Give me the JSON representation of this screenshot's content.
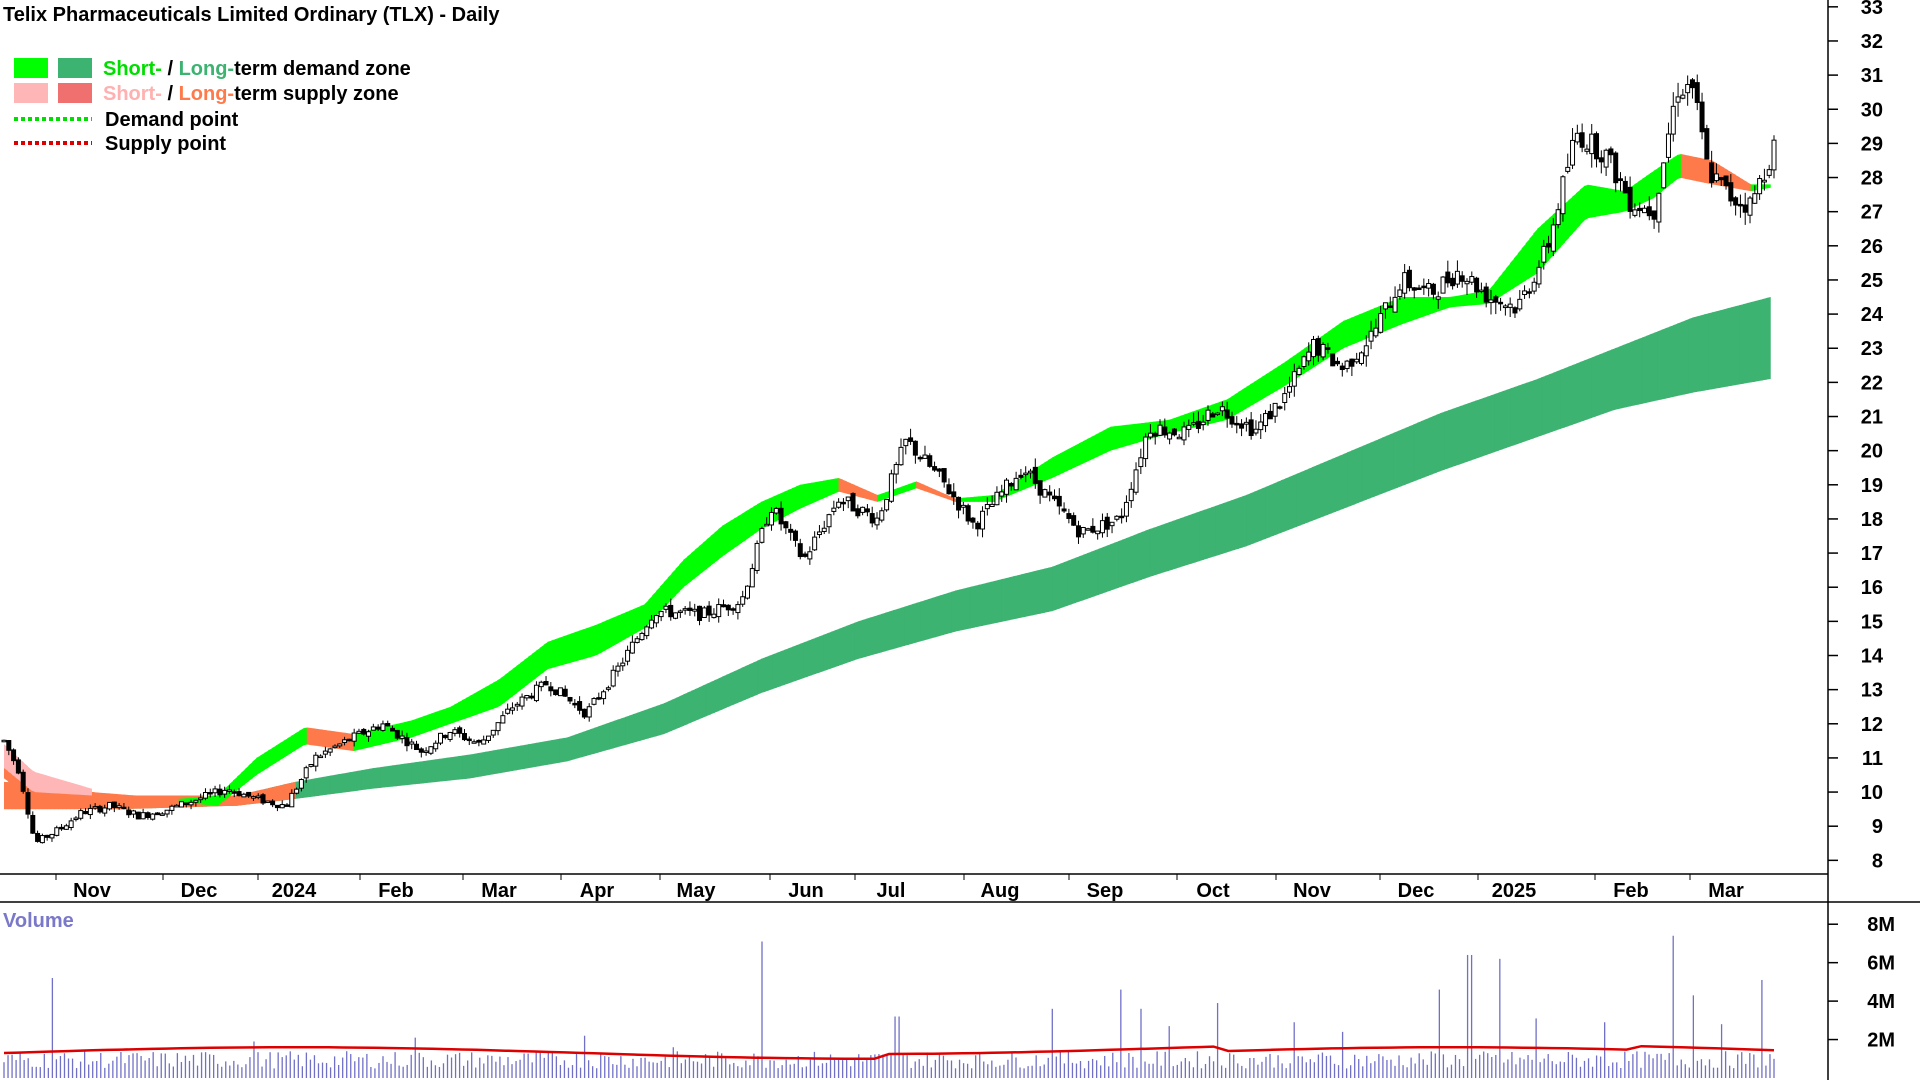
{
  "chart_data": {
    "type": "candlestick",
    "title": "Telix Pharmaceuticals Limited Ordinary (TLX) - Daily",
    "price_axis": {
      "ticks": [
        "8",
        "9",
        "10",
        "11",
        "12",
        "13",
        "14",
        "15",
        "16",
        "17",
        "18",
        "19",
        "20",
        "21",
        "22",
        "23",
        "24",
        "25",
        "26",
        "27",
        "28",
        "29",
        "30",
        "31",
        "32",
        "33"
      ],
      "range": [
        7.6,
        33.2
      ]
    },
    "x_axis": {
      "labels": [
        "Nov",
        "Dec",
        "2024",
        "Feb",
        "Mar",
        "Apr",
        "May",
        "Jun",
        "Jul",
        "Aug",
        "Sep",
        "Oct",
        "Nov",
        "Dec",
        "2025",
        "Feb",
        "Mar"
      ]
    },
    "legend": {
      "row1": {
        "short": "Short-",
        "sep": " / ",
        "long": "Long-",
        "rest": "term demand zone"
      },
      "row2": {
        "short": "Short-",
        "sep": " / ",
        "long": "Long-",
        "rest": "term supply zone"
      },
      "row3": "Demand point",
      "row4": "Supply point"
    },
    "colors": {
      "short_demand": "#00ff00",
      "long_demand": "#3cb371",
      "short_supply": "#ffb6b6",
      "long_supply": "#ff7a4a",
      "demand_point": "#00dd00",
      "supply_point": "#dd0000",
      "volume_bar": "#7070c8",
      "volume_avg": "#dd0000"
    },
    "short_term_band": [
      {
        "d": 0,
        "a": 11.3,
        "b": 10.4
      },
      {
        "d": 15,
        "a": 10.5,
        "b": 9.7
      },
      {
        "d": 45,
        "a": 10.0,
        "b": 9.6
      },
      {
        "d": 90,
        "a": 9.8,
        "b": 9.7
      },
      {
        "d": 110,
        "a": 9.9,
        "b": 9.6
      },
      {
        "d": 130,
        "a": 11.0,
        "b": 10.5
      },
      {
        "d": 155,
        "a": 11.9,
        "b": 11.4
      },
      {
        "d": 180,
        "a": 11.7,
        "b": 11.2
      },
      {
        "d": 210,
        "a": 12.1,
        "b": 11.6
      },
      {
        "d": 230,
        "a": 12.5,
        "b": 12.0
      },
      {
        "d": 255,
        "a": 13.3,
        "b": 12.5
      },
      {
        "d": 280,
        "a": 14.4,
        "b": 13.6
      },
      {
        "d": 305,
        "a": 14.9,
        "b": 14.0
      },
      {
        "d": 330,
        "a": 15.5,
        "b": 14.8
      },
      {
        "d": 350,
        "a": 16.8,
        "b": 16.0
      },
      {
        "d": 370,
        "a": 17.8,
        "b": 16.9
      },
      {
        "d": 390,
        "a": 18.5,
        "b": 17.7
      },
      {
        "d": 410,
        "a": 19.0,
        "b": 18.3
      },
      {
        "d": 430,
        "a": 19.2,
        "b": 18.8
      },
      {
        "d": 450,
        "a": 18.7,
        "b": 18.5
      },
      {
        "d": 470,
        "a": 19.1,
        "b": 18.9
      },
      {
        "d": 490,
        "a": 18.6,
        "b": 18.5
      },
      {
        "d": 510,
        "a": 18.7,
        "b": 18.5
      },
      {
        "d": 540,
        "a": 19.8,
        "b": 19.2
      },
      {
        "d": 570,
        "a": 20.7,
        "b": 20.0
      },
      {
        "d": 600,
        "a": 20.9,
        "b": 20.5
      },
      {
        "d": 630,
        "a": 21.5,
        "b": 20.9
      },
      {
        "d": 660,
        "a": 22.6,
        "b": 21.9
      },
      {
        "d": 690,
        "a": 23.8,
        "b": 23.0
      },
      {
        "d": 720,
        "a": 24.5,
        "b": 23.7
      },
      {
        "d": 745,
        "a": 24.5,
        "b": 24.2
      },
      {
        "d": 765,
        "a": 24.7,
        "b": 24.3
      },
      {
        "d": 790,
        "a": 26.5,
        "b": 25.2
      },
      {
        "d": 815,
        "a": 27.8,
        "b": 26.8
      },
      {
        "d": 835,
        "a": 27.6,
        "b": 27.0
      },
      {
        "d": 850,
        "a": 28.2,
        "b": 27.4
      },
      {
        "d": 863,
        "a": 28.7,
        "b": 28.0
      },
      {
        "d": 880,
        "a": 28.5,
        "b": 27.8
      },
      {
        "d": 900,
        "a": 27.8,
        "b": 27.6
      },
      {
        "d": 910,
        "a": 27.8,
        "b": 27.7
      }
    ],
    "long_term_band": [
      {
        "d": 0,
        "a": 10.3,
        "b": 9.5
      },
      {
        "d": 60,
        "a": 9.9,
        "b": 9.5
      },
      {
        "d": 120,
        "a": 9.9,
        "b": 9.6
      },
      {
        "d": 150,
        "a": 10.3,
        "b": 9.8
      },
      {
        "d": 190,
        "a": 10.7,
        "b": 10.1
      },
      {
        "d": 240,
        "a": 11.1,
        "b": 10.4
      },
      {
        "d": 290,
        "a": 11.6,
        "b": 10.9
      },
      {
        "d": 340,
        "a": 12.6,
        "b": 11.7
      },
      {
        "d": 390,
        "a": 13.9,
        "b": 12.9
      },
      {
        "d": 440,
        "a": 15.0,
        "b": 13.9
      },
      {
        "d": 490,
        "a": 15.9,
        "b": 14.7
      },
      {
        "d": 540,
        "a": 16.6,
        "b": 15.3
      },
      {
        "d": 590,
        "a": 17.7,
        "b": 16.3
      },
      {
        "d": 640,
        "a": 18.7,
        "b": 17.2
      },
      {
        "d": 690,
        "a": 19.9,
        "b": 18.3
      },
      {
        "d": 740,
        "a": 21.1,
        "b": 19.4
      },
      {
        "d": 790,
        "a": 22.1,
        "b": 20.4
      },
      {
        "d": 830,
        "a": 23.0,
        "b": 21.2
      },
      {
        "d": 870,
        "a": 23.9,
        "b": 21.7
      },
      {
        "d": 910,
        "a": 24.5,
        "b": 22.1
      }
    ],
    "ohlc_anchors": [
      {
        "d": 0,
        "p": 11.5
      },
      {
        "d": 8,
        "p": 10.6
      },
      {
        "d": 16,
        "p": 8.5
      },
      {
        "d": 28,
        "p": 8.9
      },
      {
        "d": 40,
        "p": 9.4
      },
      {
        "d": 55,
        "p": 9.6
      },
      {
        "d": 70,
        "p": 9.3
      },
      {
        "d": 85,
        "p": 9.5
      },
      {
        "d": 100,
        "p": 9.8
      },
      {
        "d": 115,
        "p": 10.1
      },
      {
        "d": 130,
        "p": 9.8
      },
      {
        "d": 145,
        "p": 9.6
      },
      {
        "d": 160,
        "p": 11.0
      },
      {
        "d": 180,
        "p": 11.6
      },
      {
        "d": 195,
        "p": 12.0
      },
      {
        "d": 215,
        "p": 11.2
      },
      {
        "d": 230,
        "p": 11.8
      },
      {
        "d": 245,
        "p": 11.4
      },
      {
        "d": 262,
        "p": 12.5
      },
      {
        "d": 280,
        "p": 13.2
      },
      {
        "d": 300,
        "p": 12.3
      },
      {
        "d": 315,
        "p": 13.5
      },
      {
        "d": 335,
        "p": 15.3
      },
      {
        "d": 360,
        "p": 15.2
      },
      {
        "d": 380,
        "p": 15.6
      },
      {
        "d": 395,
        "p": 18.4
      },
      {
        "d": 412,
        "p": 16.8
      },
      {
        "d": 430,
        "p": 18.6
      },
      {
        "d": 450,
        "p": 18.0
      },
      {
        "d": 465,
        "p": 20.3
      },
      {
        "d": 485,
        "p": 19.0
      },
      {
        "d": 500,
        "p": 17.8
      },
      {
        "d": 525,
        "p": 19.5
      },
      {
        "d": 540,
        "p": 18.5
      },
      {
        "d": 555,
        "p": 17.6
      },
      {
        "d": 575,
        "p": 18.0
      },
      {
        "d": 590,
        "p": 20.7
      },
      {
        "d": 610,
        "p": 20.5
      },
      {
        "d": 625,
        "p": 21.3
      },
      {
        "d": 645,
        "p": 20.6
      },
      {
        "d": 660,
        "p": 21.6
      },
      {
        "d": 675,
        "p": 23.1
      },
      {
        "d": 690,
        "p": 22.4
      },
      {
        "d": 705,
        "p": 23.4
      },
      {
        "d": 720,
        "p": 25.0
      },
      {
        "d": 735,
        "p": 24.6
      },
      {
        "d": 750,
        "p": 25.3
      },
      {
        "d": 765,
        "p": 24.5
      },
      {
        "d": 780,
        "p": 24.2
      },
      {
        "d": 795,
        "p": 25.9
      },
      {
        "d": 810,
        "p": 29.3
      },
      {
        "d": 825,
        "p": 28.7
      },
      {
        "d": 838,
        "p": 27.3
      },
      {
        "d": 850,
        "p": 27.0
      },
      {
        "d": 862,
        "p": 30.6
      },
      {
        "d": 870,
        "p": 30.7
      },
      {
        "d": 878,
        "p": 28.2
      },
      {
        "d": 890,
        "p": 27.4
      },
      {
        "d": 900,
        "p": 27.2
      },
      {
        "d": 907,
        "p": 28.2
      },
      {
        "d": 912,
        "p": 28.9
      }
    ],
    "volume_axis": {
      "ticks": [
        "2M",
        "4M",
        "6M",
        "8M"
      ],
      "range": [
        0,
        9
      ]
    },
    "volume_title": "Volume",
    "volume_spikes": [
      {
        "d": 25,
        "v": 5.2
      },
      {
        "d": 128,
        "v": 1.9
      },
      {
        "d": 212,
        "v": 2.1
      },
      {
        "d": 300,
        "v": 2.2
      },
      {
        "d": 345,
        "v": 1.6
      },
      {
        "d": 390,
        "v": 7.1
      },
      {
        "d": 460,
        "v": 3.2
      },
      {
        "d": 540,
        "v": 3.6
      },
      {
        "d": 575,
        "v": 4.6
      },
      {
        "d": 585,
        "v": 3.6
      },
      {
        "d": 600,
        "v": 2.7
      },
      {
        "d": 625,
        "v": 3.9
      },
      {
        "d": 665,
        "v": 2.9
      },
      {
        "d": 690,
        "v": 2.4
      },
      {
        "d": 740,
        "v": 4.6
      },
      {
        "d": 755,
        "v": 6.4
      },
      {
        "d": 770,
        "v": 6.2
      },
      {
        "d": 790,
        "v": 3.1
      },
      {
        "d": 825,
        "v": 2.9
      },
      {
        "d": 860,
        "v": 7.4
      },
      {
        "d": 870,
        "v": 4.3
      },
      {
        "d": 885,
        "v": 2.8
      },
      {
        "d": 905,
        "v": 5.1
      }
    ]
  }
}
